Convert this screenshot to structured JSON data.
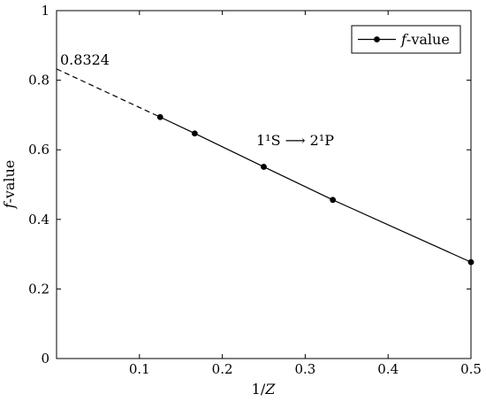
{
  "chart_data": {
    "type": "line",
    "xlabel": "1/Z",
    "ylabel": "f-value",
    "xlim": [
      0,
      0.5
    ],
    "ylim": [
      0,
      1
    ],
    "x_ticks": [
      0.1,
      0.2,
      0.3,
      0.4,
      0.5
    ],
    "x_tick_labels": [
      "0.1",
      "0.2",
      "0.3",
      "0.4",
      "0.5"
    ],
    "y_ticks": [
      0,
      0.2,
      0.4,
      0.6,
      0.8,
      1
    ],
    "y_tick_labels": [
      "0",
      "0.2",
      "0.4",
      "0.6",
      "0.8",
      "1"
    ],
    "grid": false,
    "legend_position": "top-right",
    "series": [
      {
        "name": "f-value",
        "color": "#000000",
        "x": [
          0.125,
          0.1667,
          0.25,
          0.3333,
          0.5
        ],
        "y": [
          0.694,
          0.647,
          0.551,
          0.456,
          0.277
        ]
      }
    ],
    "extrapolation": {
      "style": "dashed",
      "from": [
        0,
        0.8324
      ],
      "to": [
        0.125,
        0.694
      ]
    },
    "annotations": {
      "intercept_label": "0.8324",
      "transition_label": "1¹S ⟶ 2¹P"
    }
  }
}
